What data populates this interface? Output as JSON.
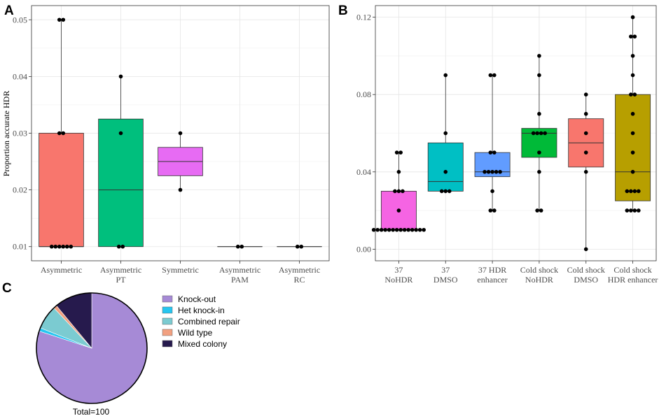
{
  "chart_data": [
    {
      "panel": "A",
      "type": "box",
      "xlabel": "",
      "ylabel": "Proportion accurate HDR",
      "ylim": [
        0.0075,
        0.0525
      ],
      "yticks": [
        "0.01",
        "0.02",
        "0.03",
        "0.04",
        "0.05"
      ],
      "ytick_values": [
        0.01,
        0.02,
        0.03,
        0.04,
        0.05
      ],
      "groups": [
        {
          "label": [
            "Asymmetric"
          ],
          "color": "#F8766D",
          "q1": 0.01,
          "median": 0.01,
          "q3": 0.03,
          "whisker_low": 0.01,
          "whisker_high": 0.05,
          "points": [
            0.05,
            0.05,
            0.03,
            0.03,
            0.01,
            0.01,
            0.01,
            0.01,
            0.01,
            0.01
          ]
        },
        {
          "label": [
            "Asymmetric",
            "PT"
          ],
          "color": "#00BF7D",
          "q1": 0.01,
          "median": 0.02,
          "q3": 0.0325,
          "whisker_low": 0.01,
          "whisker_high": 0.04,
          "points": [
            0.04,
            0.03,
            0.01,
            0.01
          ]
        },
        {
          "label": [
            "Symmetric"
          ],
          "color": "#E76BF3",
          "q1": 0.0225,
          "median": 0.025,
          "q3": 0.0275,
          "whisker_low": 0.02,
          "whisker_high": 0.03,
          "points": [
            0.03,
            0.02
          ]
        },
        {
          "label": [
            "Asymmetric",
            "PAM"
          ],
          "color": "#A3A500",
          "q1": 0.01,
          "median": 0.01,
          "q3": 0.01,
          "whisker_low": 0.01,
          "whisker_high": 0.01,
          "points": [
            0.01,
            0.01
          ]
        },
        {
          "label": [
            "Asymmetric",
            "RC"
          ],
          "color": "#00B0F6",
          "q1": 0.01,
          "median": 0.01,
          "q3": 0.01,
          "whisker_low": 0.01,
          "whisker_high": 0.01,
          "points": [
            0.01,
            0.01
          ]
        }
      ]
    },
    {
      "panel": "B",
      "type": "box",
      "xlabel": "",
      "ylabel": "",
      "ylim": [
        -0.006,
        0.126
      ],
      "yticks": [
        "0.00",
        "0.04",
        "0.08",
        "0.12"
      ],
      "ytick_values": [
        0.0,
        0.04,
        0.08,
        0.12
      ],
      "groups": [
        {
          "label": [
            "37",
            "NoHDR"
          ],
          "color": "#F564E3",
          "q1": 0.01,
          "median": 0.01,
          "q3": 0.03,
          "whisker_low": 0.01,
          "whisker_high": 0.05,
          "points": [
            0.05,
            0.05,
            0.04,
            0.03,
            0.03,
            0.03,
            0.02,
            0.01,
            0.01,
            0.01,
            0.01,
            0.01,
            0.01,
            0.01,
            0.01,
            0.01,
            0.01,
            0.01,
            0.01,
            0.01,
            0.01
          ]
        },
        {
          "label": [
            "37",
            "DMSO"
          ],
          "color": "#00BFC4",
          "q1": 0.03,
          "median": 0.035,
          "q3": 0.055,
          "whisker_low": 0.03,
          "whisker_high": 0.09,
          "points": [
            0.09,
            0.06,
            0.04,
            0.03,
            0.03,
            0.03
          ]
        },
        {
          "label": [
            "37 HDR",
            "enhancer"
          ],
          "color": "#619CFF",
          "q1": 0.0375,
          "median": 0.04,
          "q3": 0.05,
          "whisker_low": 0.02,
          "whisker_high": 0.09,
          "points": [
            0.09,
            0.09,
            0.05,
            0.05,
            0.04,
            0.04,
            0.04,
            0.04,
            0.04,
            0.03,
            0.02,
            0.02
          ]
        },
        {
          "label": [
            "Cold shock",
            "NoHDR"
          ],
          "color": "#00BA38",
          "q1": 0.0475,
          "median": 0.06,
          "q3": 0.0625,
          "whisker_low": 0.02,
          "whisker_high": 0.1,
          "points": [
            0.1,
            0.09,
            0.07,
            0.06,
            0.06,
            0.06,
            0.06,
            0.05,
            0.04,
            0.02,
            0.02
          ]
        },
        {
          "label": [
            "Cold shock",
            "DMSO"
          ],
          "color": "#F8766D",
          "q1": 0.0425,
          "median": 0.055,
          "q3": 0.0675,
          "whisker_low": 0.0,
          "whisker_high": 0.08,
          "points": [
            0.08,
            0.07,
            0.06,
            0.05,
            0.04,
            0.0
          ]
        },
        {
          "label": [
            "Cold shock",
            "HDR enhancer"
          ],
          "color": "#B79F00",
          "q1": 0.025,
          "median": 0.04,
          "q3": 0.08,
          "whisker_low": 0.02,
          "whisker_high": 0.12,
          "points": [
            0.12,
            0.11,
            0.11,
            0.1,
            0.09,
            0.08,
            0.08,
            0.07,
            0.06,
            0.05,
            0.04,
            0.03,
            0.03,
            0.03,
            0.03,
            0.02,
            0.02,
            0.02,
            0.02
          ]
        }
      ]
    },
    {
      "panel": "C",
      "type": "pie",
      "total_label": "Total=100",
      "slices": [
        {
          "name": "Knock-out",
          "value": 80,
          "color": "#A68AD6"
        },
        {
          "name": "Het knock-in",
          "value": 1,
          "color": "#26C6F0"
        },
        {
          "name": "Combined repair",
          "value": 7,
          "color": "#7BCBD1"
        },
        {
          "name": "Wild type",
          "value": 1,
          "color": "#F2A080"
        },
        {
          "name": "Mixed colony",
          "value": 11,
          "color": "#261A4D"
        }
      ]
    }
  ],
  "panel_letters": {
    "a": "A",
    "b": "B",
    "c": "C"
  }
}
